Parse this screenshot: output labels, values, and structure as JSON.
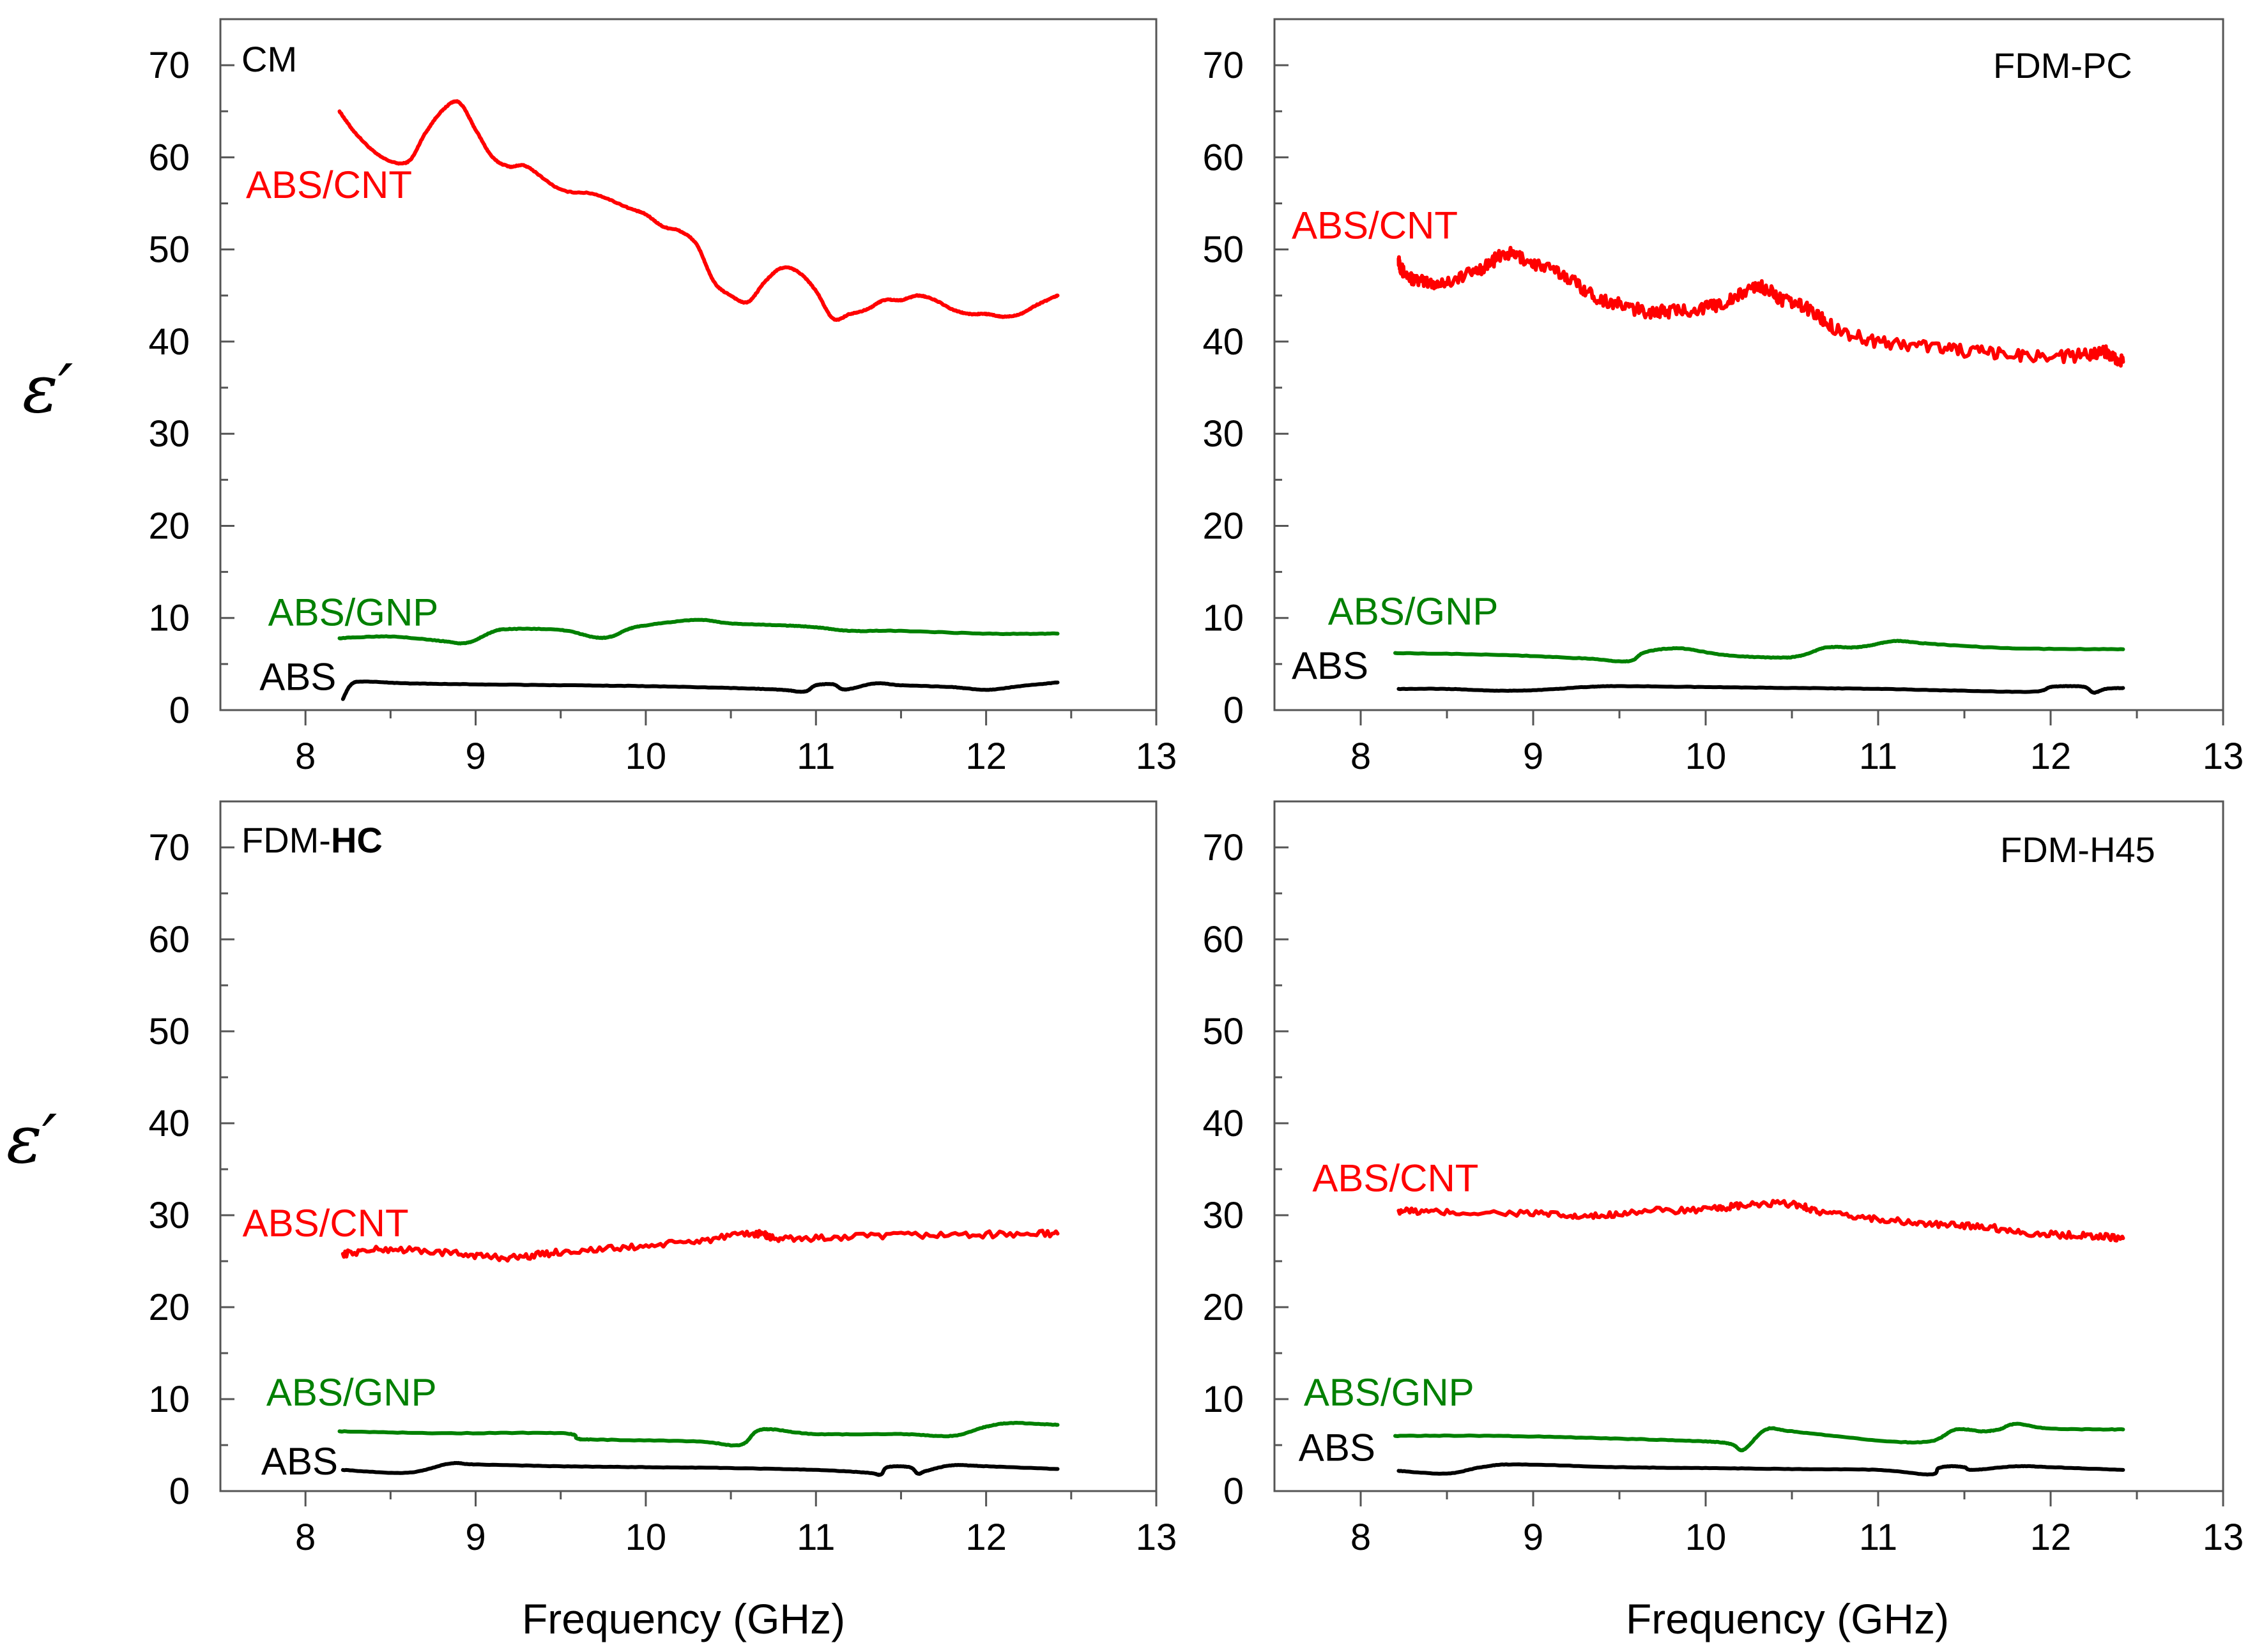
{
  "colors": {
    "ABS": "#000000",
    "ABS/GNP": "#008000",
    "ABS/CNT": "#ff0000"
  },
  "axis": {
    "y_symbol": "ε′",
    "xlabel": "Frequency (GHz)"
  },
  "panels": [
    {
      "label_prefix": "CM",
      "label_bold": ""
    },
    {
      "label_prefix": "FDM-PC",
      "label_bold": ""
    },
    {
      "label_prefix": "FDM-",
      "label_bold": "HC"
    },
    {
      "label_prefix": "FDM-H45",
      "label_bold": ""
    }
  ],
  "chart_data": [
    {
      "type": "line",
      "title": "CM",
      "xlabel": "",
      "ylabel": "ε′",
      "xlim": [
        7.5,
        13
      ],
      "ylim": [
        0,
        75
      ],
      "xticks": [
        8,
        9,
        10,
        11,
        12,
        13
      ],
      "yticks": [
        0,
        10,
        20,
        30,
        40,
        50,
        60,
        70
      ],
      "series": [
        {
          "name": "ABS/CNT",
          "color": "#ff0000",
          "jitter": 0.05,
          "x": [
            8.2,
            8.3,
            8.45,
            8.6,
            8.7,
            8.8,
            8.9,
            9.0,
            9.1,
            9.2,
            9.3,
            9.5,
            9.7,
            9.9,
            10.0,
            10.1,
            10.2,
            10.3,
            10.4,
            10.5,
            10.6,
            10.7,
            10.8,
            10.9,
            11.0,
            11.1,
            11.2,
            11.3,
            11.4,
            11.5,
            11.6,
            11.7,
            11.8,
            11.9,
            12.0,
            12.1,
            12.2,
            12.3,
            12.42
          ],
          "y": [
            65,
            62.5,
            60,
            59.5,
            62.5,
            65,
            66,
            63,
            60,
            59,
            59,
            56.5,
            56,
            54.5,
            53.8,
            52.5,
            52,
            50.5,
            46.5,
            45,
            44.3,
            46.5,
            48,
            47.5,
            45.5,
            42.5,
            43,
            43.5,
            44.5,
            44.5,
            45,
            44.5,
            43.5,
            43,
            43,
            42.7,
            43,
            44,
            45
          ]
        },
        {
          "name": "ABS/GNP",
          "color": "#008000",
          "jitter": 0.03,
          "x": [
            8.2,
            8.5,
            8.8,
            8.95,
            9.1,
            9.2,
            9.5,
            9.7,
            9.8,
            9.9,
            10.0,
            10.3,
            10.5,
            10.8,
            11.0,
            11.2,
            11.5,
            12.0,
            12.42
          ],
          "y": [
            7.8,
            8.0,
            7.5,
            7.3,
            8.5,
            8.8,
            8.7,
            7.9,
            8.0,
            8.8,
            9.2,
            9.8,
            9.4,
            9.2,
            9.0,
            8.6,
            8.6,
            8.3,
            8.3
          ]
        },
        {
          "name": "ABS",
          "color": "#000000",
          "jitter": 0.02,
          "x": [
            8.22,
            8.27,
            8.35,
            8.6,
            9.0,
            9.5,
            10.0,
            10.5,
            10.8,
            10.9,
            10.95,
            11.0,
            11.1,
            11.15,
            11.2,
            11.35,
            11.5,
            11.8,
            12.0,
            12.2,
            12.42
          ],
          "y": [
            1.2,
            2.8,
            3.1,
            2.9,
            2.8,
            2.7,
            2.6,
            2.4,
            2.2,
            2.0,
            2.1,
            2.7,
            2.8,
            2.3,
            2.3,
            2.9,
            2.7,
            2.5,
            2.2,
            2.6,
            3.0
          ]
        }
      ],
      "annotations": [
        {
          "text": "ABS/CNT",
          "x": 7.65,
          "y": 55.6
        },
        {
          "text": "ABS/GNP",
          "x": 7.78,
          "y": 9.2
        },
        {
          "text": "ABS",
          "x": 7.73,
          "y": 2.2
        }
      ]
    },
    {
      "type": "line",
      "title": "FDM-PC",
      "xlabel": "Frequency (GHz)",
      "ylabel": "",
      "xlim": [
        7.5,
        13
      ],
      "ylim": [
        0,
        75
      ],
      "xticks": [
        8,
        9,
        10,
        11,
        12,
        13
      ],
      "yticks": [
        0,
        10,
        20,
        30,
        40,
        50,
        60,
        70
      ],
      "series": [
        {
          "name": "ABS/CNT",
          "color": "#ff0000",
          "jitter": 0.7,
          "x": [
            8.22,
            8.25,
            8.35,
            8.5,
            8.7,
            8.85,
            9.0,
            9.2,
            9.35,
            9.5,
            9.65,
            9.8,
            10.0,
            10.15,
            10.3,
            10.45,
            10.6,
            10.75,
            11.0,
            11.3,
            11.6,
            11.9,
            12.2,
            12.3,
            12.42
          ],
          "y": [
            49,
            47.5,
            46.5,
            46.5,
            48,
            49.5,
            48.5,
            47,
            45,
            44,
            43.3,
            43.3,
            43.7,
            44.5,
            46,
            44.5,
            43.5,
            41.5,
            40,
            39.5,
            38.8,
            38.5,
            38.5,
            39,
            37.8
          ]
        },
        {
          "name": "ABS/GNP",
          "color": "#008000",
          "jitter": 0.03,
          "x": [
            8.2,
            8.8,
            9.3,
            9.55,
            9.65,
            9.85,
            10.1,
            10.4,
            10.55,
            10.7,
            10.85,
            10.95,
            11.1,
            11.3,
            11.8,
            12.42
          ],
          "y": [
            6.2,
            6.0,
            5.6,
            5.3,
            6.3,
            6.7,
            6.0,
            5.7,
            5.9,
            6.8,
            6.8,
            7.0,
            7.5,
            7.2,
            6.7,
            6.6
          ]
        },
        {
          "name": "ABS",
          "color": "#000000",
          "jitter": 0.02,
          "x": [
            8.22,
            8.5,
            8.8,
            9.05,
            9.3,
            9.5,
            10.0,
            10.5,
            11.0,
            11.5,
            11.9,
            12.0,
            12.1,
            12.2,
            12.25,
            12.32,
            12.42
          ],
          "y": [
            2.3,
            2.3,
            2.1,
            2.2,
            2.5,
            2.6,
            2.5,
            2.4,
            2.3,
            2.1,
            2.0,
            2.5,
            2.6,
            2.5,
            1.9,
            2.3,
            2.4
          ]
        }
      ],
      "annotations": [
        {
          "text": "ABS/CNT",
          "x": 7.6,
          "y": 51.2
        },
        {
          "text": "ABS/GNP",
          "x": 7.81,
          "y": 9.3
        },
        {
          "text": "ABS",
          "x": 7.6,
          "y": 3.4
        }
      ]
    },
    {
      "type": "line",
      "title": "FDM-HC",
      "xlabel": "Frequency (GHz)",
      "ylabel": "ε′",
      "xlim": [
        7.5,
        13
      ],
      "ylim": [
        0,
        75
      ],
      "xticks": [
        8,
        9,
        10,
        11,
        12,
        13
      ],
      "yticks": [
        0,
        10,
        20,
        30,
        40,
        50,
        60,
        70
      ],
      "series": [
        {
          "name": "ABS/CNT",
          "color": "#ff0000",
          "jitter": 0.35,
          "x": [
            8.22,
            8.5,
            8.9,
            9.2,
            9.5,
            9.9,
            10.3,
            10.65,
            10.75,
            11.0,
            11.5,
            12.0,
            12.42
          ],
          "y": [
            25.8,
            26.3,
            25.8,
            25.4,
            26.0,
            26.5,
            27.2,
            28.0,
            27.5,
            27.5,
            27.8,
            27.9,
            28.0
          ]
        },
        {
          "name": "ABS/GNP",
          "color": "#008000",
          "jitter": 0.03,
          "x": [
            8.2,
            8.8,
            9.5,
            9.6,
            9.7,
            10.3,
            10.55,
            10.65,
            10.75,
            11.0,
            11.5,
            11.8,
            12.0,
            12.15,
            12.42
          ],
          "y": [
            6.5,
            6.3,
            6.3,
            5.7,
            5.6,
            5.4,
            5.0,
            6.5,
            6.7,
            6.2,
            6.2,
            6.0,
            7.0,
            7.4,
            7.2
          ]
        },
        {
          "name": "ABS",
          "color": "#000000",
          "jitter": 0.02,
          "x": [
            8.22,
            8.6,
            8.85,
            9.0,
            9.5,
            10.0,
            10.5,
            11.0,
            11.3,
            11.38,
            11.42,
            11.55,
            11.6,
            11.65,
            11.8,
            12.0,
            12.42
          ],
          "y": [
            2.3,
            2.0,
            3.0,
            2.9,
            2.7,
            2.6,
            2.5,
            2.3,
            2.0,
            1.8,
            2.6,
            2.6,
            1.9,
            2.2,
            2.8,
            2.7,
            2.4
          ]
        }
      ],
      "annotations": [
        {
          "text": "ABS/CNT",
          "x": 7.63,
          "y": 27.7
        },
        {
          "text": "ABS/GNP",
          "x": 7.77,
          "y": 9.3
        },
        {
          "text": "ABS",
          "x": 7.74,
          "y": 1.8
        }
      ]
    },
    {
      "type": "line",
      "title": "FDM-H45",
      "xlabel": "Frequency (GHz)",
      "ylabel": "",
      "xlim": [
        7.5,
        13
      ],
      "ylim": [
        0,
        75
      ],
      "xticks": [
        8,
        9,
        10,
        11,
        12,
        13
      ],
      "yticks": [
        0,
        10,
        20,
        30,
        40,
        50,
        60,
        70
      ],
      "series": [
        {
          "name": "ABS/CNT",
          "color": "#ff0000",
          "jitter": 0.35,
          "x": [
            8.22,
            8.5,
            9.0,
            9.3,
            9.6,
            10.0,
            10.2,
            10.5,
            10.7,
            11.0,
            11.3,
            11.6,
            11.9,
            12.2,
            12.42
          ],
          "y": [
            30.5,
            30.3,
            30.2,
            29.8,
            30.4,
            30.6,
            31.0,
            31.2,
            30.2,
            29.6,
            29.0,
            28.8,
            28.0,
            27.8,
            27.5
          ]
        },
        {
          "name": "ABS/GNP",
          "color": "#008000",
          "jitter": 0.03,
          "x": [
            8.2,
            8.8,
            9.5,
            10.0,
            10.15,
            10.22,
            10.35,
            10.5,
            11.0,
            11.3,
            11.45,
            11.6,
            11.7,
            11.8,
            12.0,
            12.42
          ],
          "y": [
            6.0,
            6.0,
            5.7,
            5.4,
            5.1,
            4.5,
            6.7,
            6.5,
            5.5,
            5.4,
            6.7,
            6.5,
            6.7,
            7.3,
            6.8,
            6.7
          ]
        },
        {
          "name": "ABS",
          "color": "#000000",
          "jitter": 0.02,
          "x": [
            8.22,
            8.5,
            8.7,
            8.9,
            9.5,
            10.0,
            10.5,
            11.0,
            11.3,
            11.35,
            11.42,
            11.5,
            11.55,
            11.8,
            12.0,
            12.42
          ],
          "y": [
            2.2,
            1.9,
            2.6,
            2.9,
            2.6,
            2.5,
            2.4,
            2.3,
            1.8,
            2.5,
            2.7,
            2.6,
            2.3,
            2.7,
            2.6,
            2.3
          ]
        }
      ],
      "annotations": [
        {
          "text": "ABS/CNT",
          "x": 7.72,
          "y": 32.6
        },
        {
          "text": "ABS/GNP",
          "x": 7.67,
          "y": 9.3
        },
        {
          "text": "ABS",
          "x": 7.64,
          "y": 3.3
        }
      ]
    }
  ]
}
